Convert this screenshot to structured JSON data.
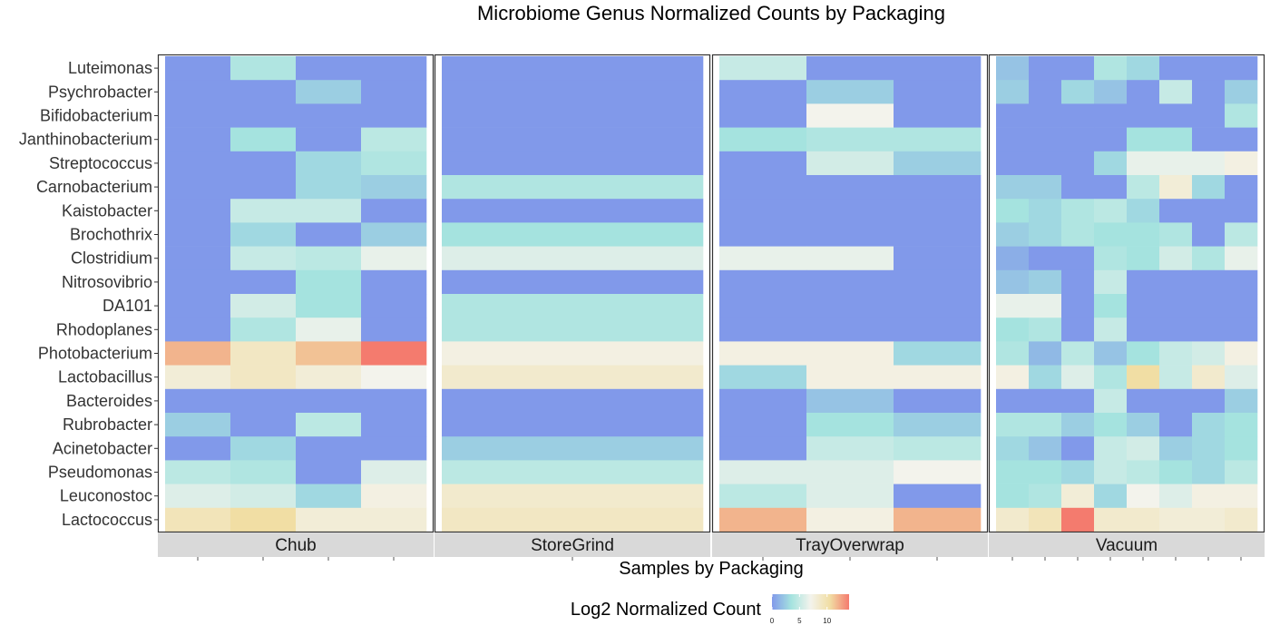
{
  "chart_data": {
    "type": "heatmap",
    "title": "Microbiome Genus Normalized Counts by Packaging",
    "xlabel": "Samples by Packaging",
    "legend_title": "Log2 Normalized Count",
    "legend_ticks": [
      "0",
      "5",
      "10"
    ],
    "legend_placement": "bottom",
    "value_range": [
      0,
      14
    ],
    "colors": [
      "#8199ea",
      "#a5e3df",
      "#f3f3ec",
      "#f1dea4",
      "#f47b6e"
    ],
    "genera": [
      "Luteimonas",
      "Psychrobacter",
      "Bifidobacterium",
      "Janthinobacterium",
      "Streptococcus",
      "Carnobacterium",
      "Kaistobacter",
      "Brochothrix",
      "Clostridium",
      "Nitrosovibrio",
      "DA101",
      "Rhodoplanes",
      "Photobacterium",
      "Lactobacillus",
      "Bacteroides",
      "Rubrobacter",
      "Acinetobacter",
      "Pseudomonas",
      "Leuconostoc",
      "Lactococcus"
    ],
    "facets": [
      {
        "name": "Chub",
        "samples": 4,
        "values": [
          [
            0,
            4,
            0,
            0
          ],
          [
            0,
            0,
            2.5,
            0
          ],
          [
            0,
            0,
            0,
            0
          ],
          [
            0,
            3.5,
            0,
            4.5
          ],
          [
            0,
            0,
            3,
            4
          ],
          [
            0,
            0,
            3,
            2.5
          ],
          [
            0,
            5,
            5,
            0
          ],
          [
            0,
            3,
            0,
            2.5
          ],
          [
            0,
            5,
            4.5,
            6.5
          ],
          [
            0,
            0,
            3.5,
            0
          ],
          [
            0,
            5.5,
            3.5,
            0
          ],
          [
            0,
            4,
            6.5,
            0
          ],
          [
            12,
            9,
            11.5,
            14
          ],
          [
            8,
            9,
            8,
            7
          ],
          [
            0,
            0,
            0,
            0
          ],
          [
            2.5,
            0,
            4.5,
            0
          ],
          [
            0,
            3,
            0,
            0
          ],
          [
            4.5,
            4,
            0,
            6
          ],
          [
            6,
            5.5,
            3,
            7.5
          ],
          [
            9.5,
            10.5,
            8,
            8
          ]
        ]
      },
      {
        "name": "StoreGrind",
        "samples": 1,
        "values": [
          [
            0
          ],
          [
            0
          ],
          [
            0
          ],
          [
            0
          ],
          [
            0
          ],
          [
            4
          ],
          [
            0
          ],
          [
            3.5
          ],
          [
            6
          ],
          [
            0
          ],
          [
            4
          ],
          [
            4
          ],
          [
            7.5
          ],
          [
            8.5
          ],
          [
            0
          ],
          [
            0
          ],
          [
            2.5
          ],
          [
            4.5
          ],
          [
            8.5
          ],
          [
            9
          ]
        ]
      },
      {
        "name": "TrayOverwrap",
        "samples": 3,
        "values": [
          [
            5,
            0,
            0
          ],
          [
            0,
            2.5,
            0
          ],
          [
            0,
            7,
            0
          ],
          [
            3.5,
            4,
            4
          ],
          [
            0,
            5.5,
            2.5
          ],
          [
            0,
            0,
            0
          ],
          [
            0,
            0,
            0
          ],
          [
            0,
            0,
            0
          ],
          [
            6.5,
            6.5,
            0
          ],
          [
            0,
            0,
            0
          ],
          [
            0,
            0,
            0
          ],
          [
            0,
            0,
            0
          ],
          [
            7.5,
            7.5,
            3
          ],
          [
            3,
            7.5,
            7.5
          ],
          [
            0,
            2,
            0
          ],
          [
            0,
            3.5,
            2.5
          ],
          [
            0,
            5,
            4.5
          ],
          [
            6,
            6,
            7
          ],
          [
            4.5,
            6,
            0
          ],
          [
            12,
            7.5,
            12
          ]
        ]
      },
      {
        "name": "Vacuum",
        "samples": 8,
        "values": [
          [
            2,
            0,
            0,
            4,
            3,
            0,
            0,
            0
          ],
          [
            2.5,
            0,
            3,
            2,
            0,
            5,
            0,
            2.5
          ],
          [
            0,
            0,
            0,
            0,
            0,
            0,
            0,
            4
          ],
          [
            0,
            0,
            0,
            0,
            3.5,
            3.5,
            0,
            0
          ],
          [
            0,
            0,
            0,
            3,
            6.5,
            6.5,
            6.5,
            7.5
          ],
          [
            2.5,
            2.5,
            0,
            0,
            4.5,
            8,
            3,
            0
          ],
          [
            3.5,
            3,
            4,
            4.5,
            3,
            0,
            0,
            0
          ],
          [
            2.5,
            3,
            4,
            3.5,
            3.5,
            4,
            0,
            4.5
          ],
          [
            1,
            0,
            0,
            4,
            3.5,
            5.5,
            4,
            6.5
          ],
          [
            2,
            2.5,
            0,
            5,
            0,
            0,
            0,
            0
          ],
          [
            6.5,
            6.5,
            0,
            3.5,
            0,
            0,
            0,
            0
          ],
          [
            3.5,
            4,
            0,
            5,
            0,
            0,
            0,
            0
          ],
          [
            4,
            1.5,
            4.5,
            2,
            3.5,
            5,
            5.5,
            7.5
          ],
          [
            7.5,
            3,
            6,
            4,
            10.5,
            5,
            8.5,
            6
          ],
          [
            0,
            0,
            0,
            5,
            0,
            0,
            0,
            2.5
          ],
          [
            4,
            4,
            2.5,
            3.5,
            2.5,
            0,
            3,
            3.5
          ],
          [
            3,
            2,
            0,
            5,
            5.5,
            2.5,
            3,
            3.5
          ],
          [
            3.5,
            3.5,
            3,
            5,
            4.5,
            3.5,
            3,
            4.5
          ],
          [
            3.5,
            4,
            8,
            3,
            7,
            6,
            7.5,
            7.5
          ],
          [
            8.5,
            9.5,
            14,
            8.5,
            8.5,
            8,
            8,
            8.5
          ]
        ]
      }
    ]
  }
}
